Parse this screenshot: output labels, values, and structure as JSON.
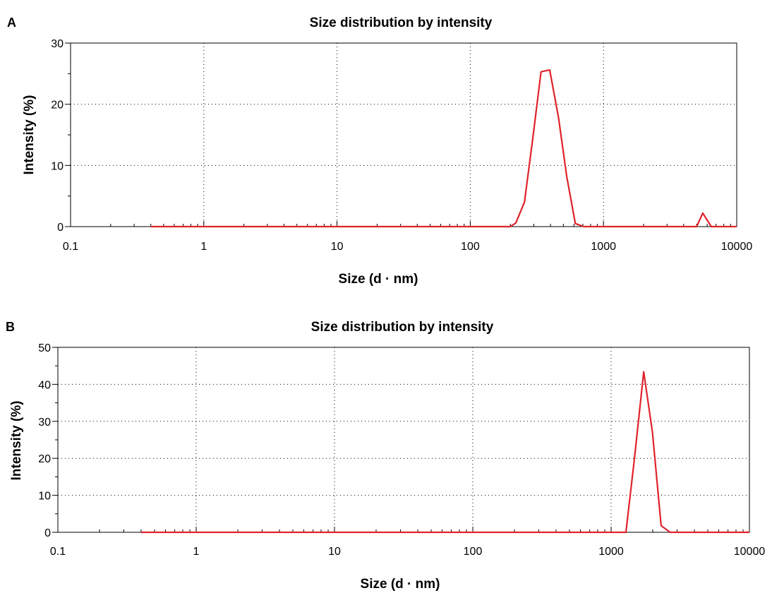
{
  "chart_data": [
    {
      "panel": "A",
      "type": "line",
      "title": "Size distribution by intensity",
      "xlabel": "Size (d · nm)",
      "ylabel": "Intensity (%)",
      "xscale": "log",
      "xlim": [
        0.1,
        10000
      ],
      "ylim": [
        0,
        30
      ],
      "xticks": [
        "0.1",
        "1",
        "10",
        "100",
        "1000",
        "10000"
      ],
      "yticks": [
        "0",
        "10",
        "20",
        "30"
      ],
      "grid": true,
      "color": "#e0232a",
      "series": [
        {
          "x": [
            0.4,
            200,
            220,
            255,
            295,
            340,
            395,
            460,
            530,
            615,
            712,
            825,
            5000,
            5560,
            6440,
            10000
          ],
          "y": [
            0,
            0,
            0.6,
            4.0,
            14.5,
            25.3,
            25.6,
            17.8,
            8.2,
            0.5,
            0,
            0,
            0,
            2.2,
            0,
            0
          ]
        }
      ]
    },
    {
      "panel": "B",
      "type": "line",
      "title": "Size distribution by intensity",
      "xlabel": "Size (d · nm)",
      "ylabel": "Intensity (%)",
      "xscale": "log",
      "xlim": [
        0.1,
        10000
      ],
      "ylim": [
        0,
        50
      ],
      "xticks": [
        "0.1",
        "1",
        "10",
        "100",
        "1000",
        "10000"
      ],
      "yticks": [
        "0",
        "10",
        "20",
        "30",
        "40",
        "50"
      ],
      "grid": true,
      "color": "#e0232a",
      "series": [
        {
          "x": [
            0.4,
            1280,
            1480,
            1720,
            1990,
            2300,
            2670,
            3090,
            10000
          ],
          "y": [
            0,
            0,
            20.5,
            43.4,
            27.0,
            1.8,
            0,
            0,
            0
          ]
        }
      ]
    }
  ]
}
